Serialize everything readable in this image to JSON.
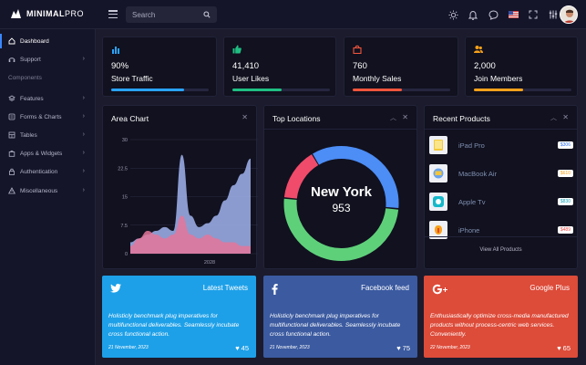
{
  "brand": {
    "name_bold": "MINIMAL",
    "name_light": "PRO"
  },
  "search": {
    "placeholder": "Search"
  },
  "sidebar": {
    "items": [
      {
        "label": "Dashboard"
      },
      {
        "label": "Support"
      },
      {
        "label": "Features"
      },
      {
        "label": "Forms & Charts"
      },
      {
        "label": "Tables"
      },
      {
        "label": "Apps & Widgets"
      },
      {
        "label": "Authentication"
      },
      {
        "label": "Miscellaneous"
      }
    ],
    "section_label": "Components"
  },
  "stats": [
    {
      "value": "90%",
      "label": "Store Traffic",
      "color": "#2aa3ff",
      "progress": 0.75
    },
    {
      "value": "41,410",
      "label": "User Likes",
      "color": "#1fbf82",
      "progress": 0.5
    },
    {
      "value": "760",
      "label": "Monthly Sales",
      "color": "#f0553c",
      "progress": 0.5
    },
    {
      "value": "2,000",
      "label": "Join Members",
      "color": "#f7a11a",
      "progress": 0.5
    }
  ],
  "area_chart": {
    "title": "Area Chart",
    "chart_data": {
      "type": "area",
      "x_tick_labels": [
        "2028"
      ],
      "y_ticks": [
        "30",
        "22.5",
        "15",
        "7.5",
        "0"
      ],
      "ylim": [
        0,
        30
      ],
      "series": [
        {
          "color": "#a1b4ee",
          "values": [
            3,
            4,
            5,
            6,
            7,
            6,
            26,
            10,
            7,
            8,
            10,
            14,
            18,
            21,
            25
          ]
        },
        {
          "color": "#e4769a",
          "values": [
            2,
            4,
            6,
            5,
            4,
            5,
            10,
            5,
            4,
            5,
            4,
            3,
            3,
            2,
            2
          ]
        }
      ]
    }
  },
  "top_locations": {
    "title": "Top Locations",
    "center_label": "New York",
    "center_value": "953",
    "chart_data": {
      "type": "pie",
      "segments": [
        {
          "color": "#4c8df6",
          "value": 35
        },
        {
          "color": "#5fd07a",
          "value": 50
        },
        {
          "color": "#f04b6a",
          "value": 15
        }
      ]
    }
  },
  "recent_products": {
    "title": "Recent Products",
    "items": [
      {
        "name": "iPad Pro",
        "price": "$306",
        "price_color": "#2a6df6"
      },
      {
        "name": "MacBook Air",
        "price": "$610",
        "price_color": "#f7a11a"
      },
      {
        "name": "Apple Tv",
        "price": "$830",
        "price_color": "#14a3b8"
      },
      {
        "name": "iPhone",
        "price": "$489",
        "price_color": "#f04b4b"
      }
    ],
    "view_all": "View All Products"
  },
  "social": [
    {
      "name": "Latest Tweets",
      "text": "Holisticly benchmark plug imperatives for multifunctional deliverables. Seamlessly incubate cross functional action.",
      "date": "21 November, 2023",
      "likes": "45",
      "color": "#1da0e8"
    },
    {
      "name": "Facebook feed",
      "text": "Holisticly benchmark plug imperatives for multifunctional deliverables. Seamlessly incubate cross functional action.",
      "date": "21 November, 2023",
      "likes": "75",
      "color": "#3b5aa0"
    },
    {
      "name": "Google Plus",
      "text": "Enthusiastically optimize cross-media manufactured products without process-centric web services. Conveniently.",
      "date": "22 November, 2023",
      "likes": "65",
      "color": "#dd4b39"
    }
  ]
}
